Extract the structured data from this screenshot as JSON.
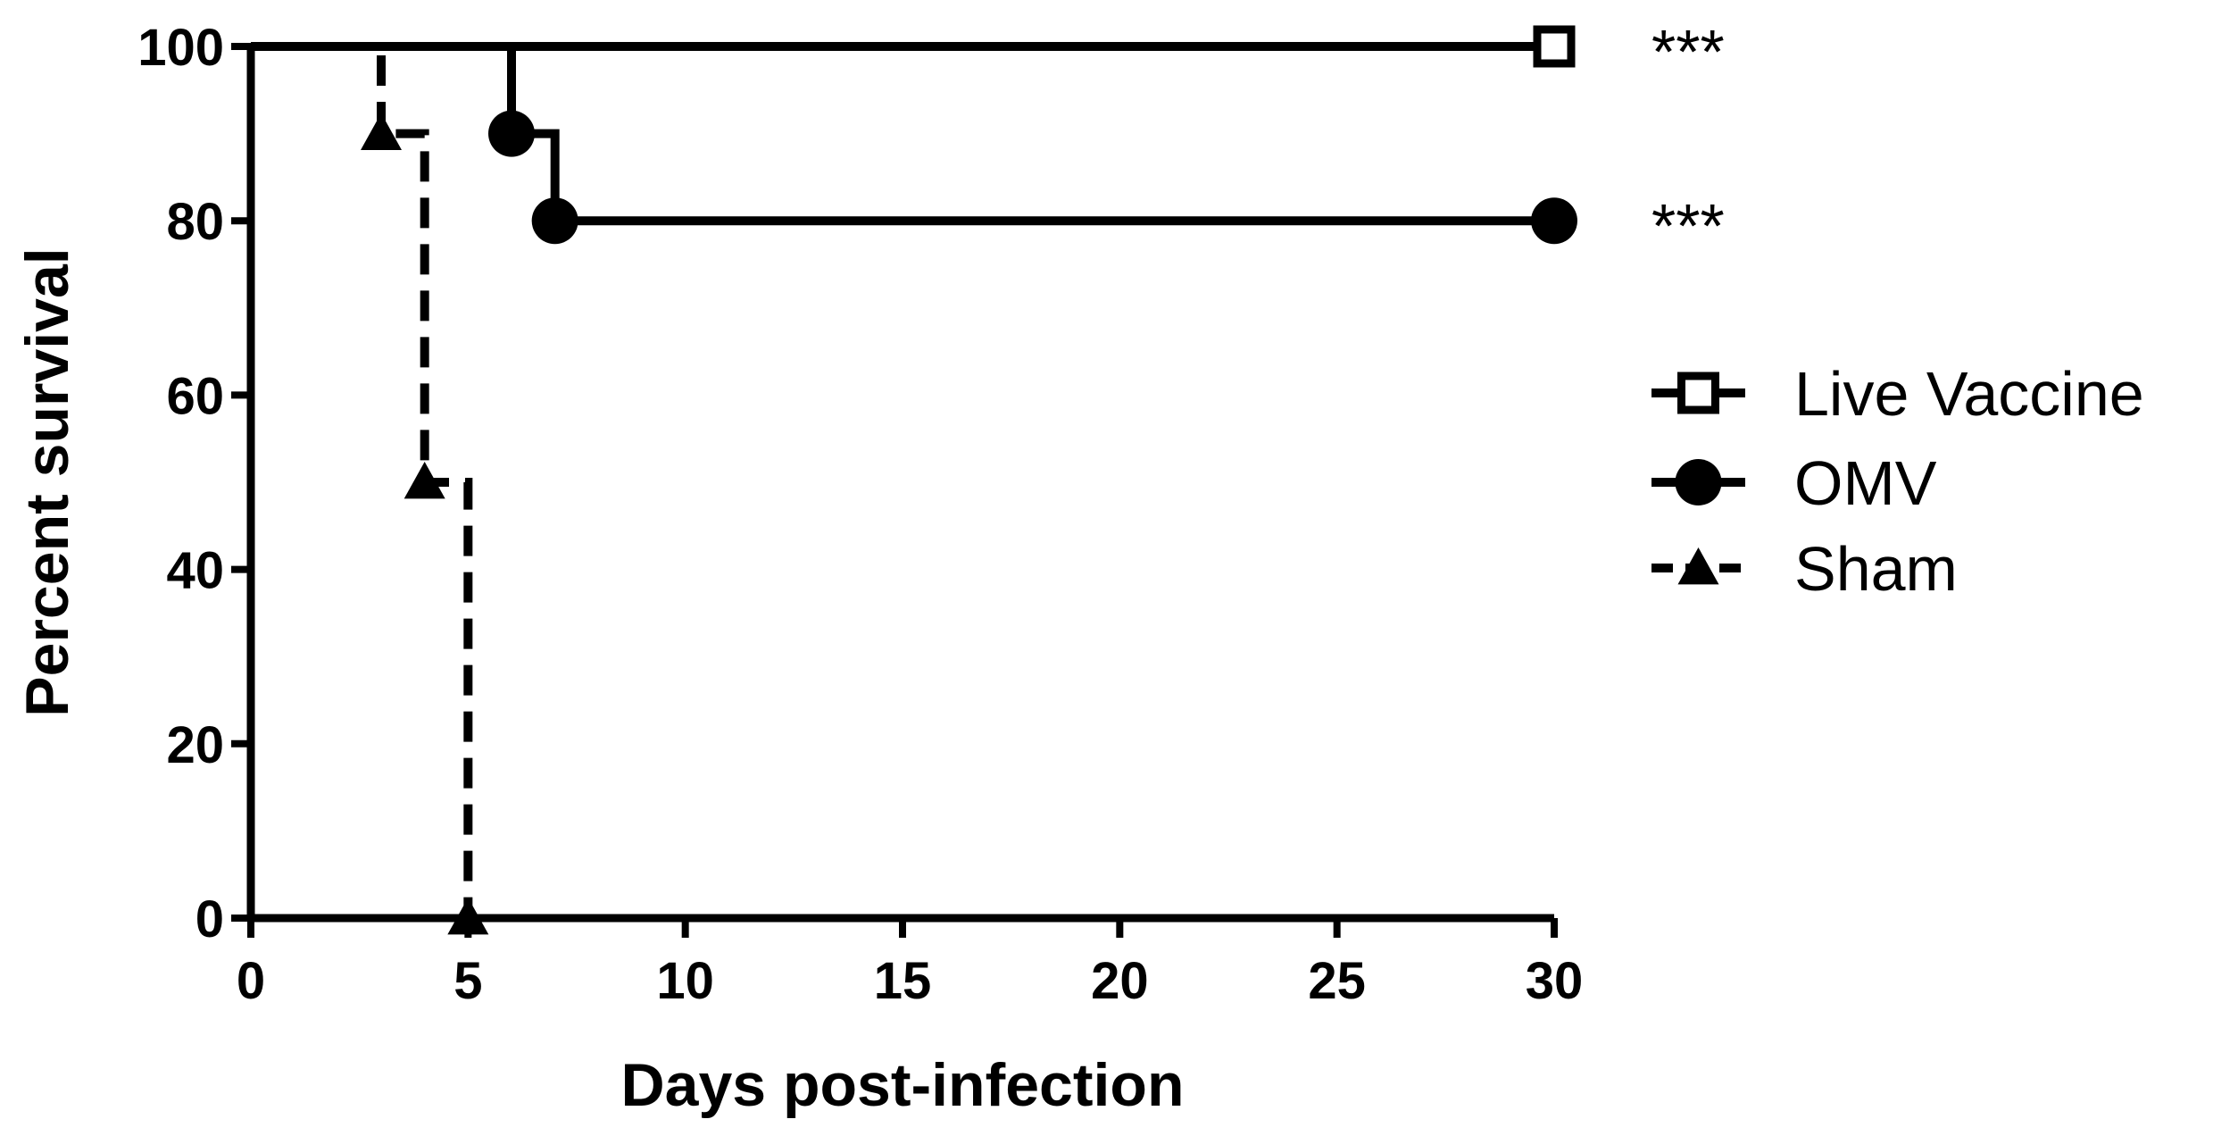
{
  "chart_data": {
    "type": "line",
    "subtype": "kaplan-meier survival (step)",
    "title": "",
    "xlabel": "Days post-infection",
    "ylabel": "Percent survival",
    "xlim": [
      0,
      30
    ],
    "ylim": [
      0,
      100
    ],
    "xticks": [
      0,
      5,
      10,
      15,
      20,
      25,
      30
    ],
    "yticks": [
      0,
      20,
      40,
      60,
      80,
      100
    ],
    "grid": false,
    "legend_position": "right",
    "series": [
      {
        "name": "Live Vaccine",
        "marker": "open-square",
        "line_style": "solid",
        "x": [
          0,
          30
        ],
        "y": [
          100,
          100
        ],
        "marker_points": [
          [
            30,
            100
          ]
        ],
        "annotation": "***"
      },
      {
        "name": "OMV",
        "marker": "filled-circle",
        "line_style": "solid",
        "x": [
          0,
          6,
          7,
          30
        ],
        "y": [
          100,
          90,
          80,
          80
        ],
        "marker_points": [
          [
            6,
            90
          ],
          [
            7,
            80
          ],
          [
            30,
            80
          ]
        ],
        "annotation": "***"
      },
      {
        "name": "Sham",
        "marker": "filled-triangle",
        "line_style": "dashed",
        "x": [
          0,
          3,
          4,
          5
        ],
        "y": [
          100,
          90,
          50,
          0
        ],
        "marker_points": [
          [
            3,
            90
          ],
          [
            4,
            50
          ],
          [
            5,
            0
          ]
        ],
        "annotation": ""
      }
    ],
    "colors": {
      "ink": "#000000",
      "background": "#ffffff"
    }
  }
}
